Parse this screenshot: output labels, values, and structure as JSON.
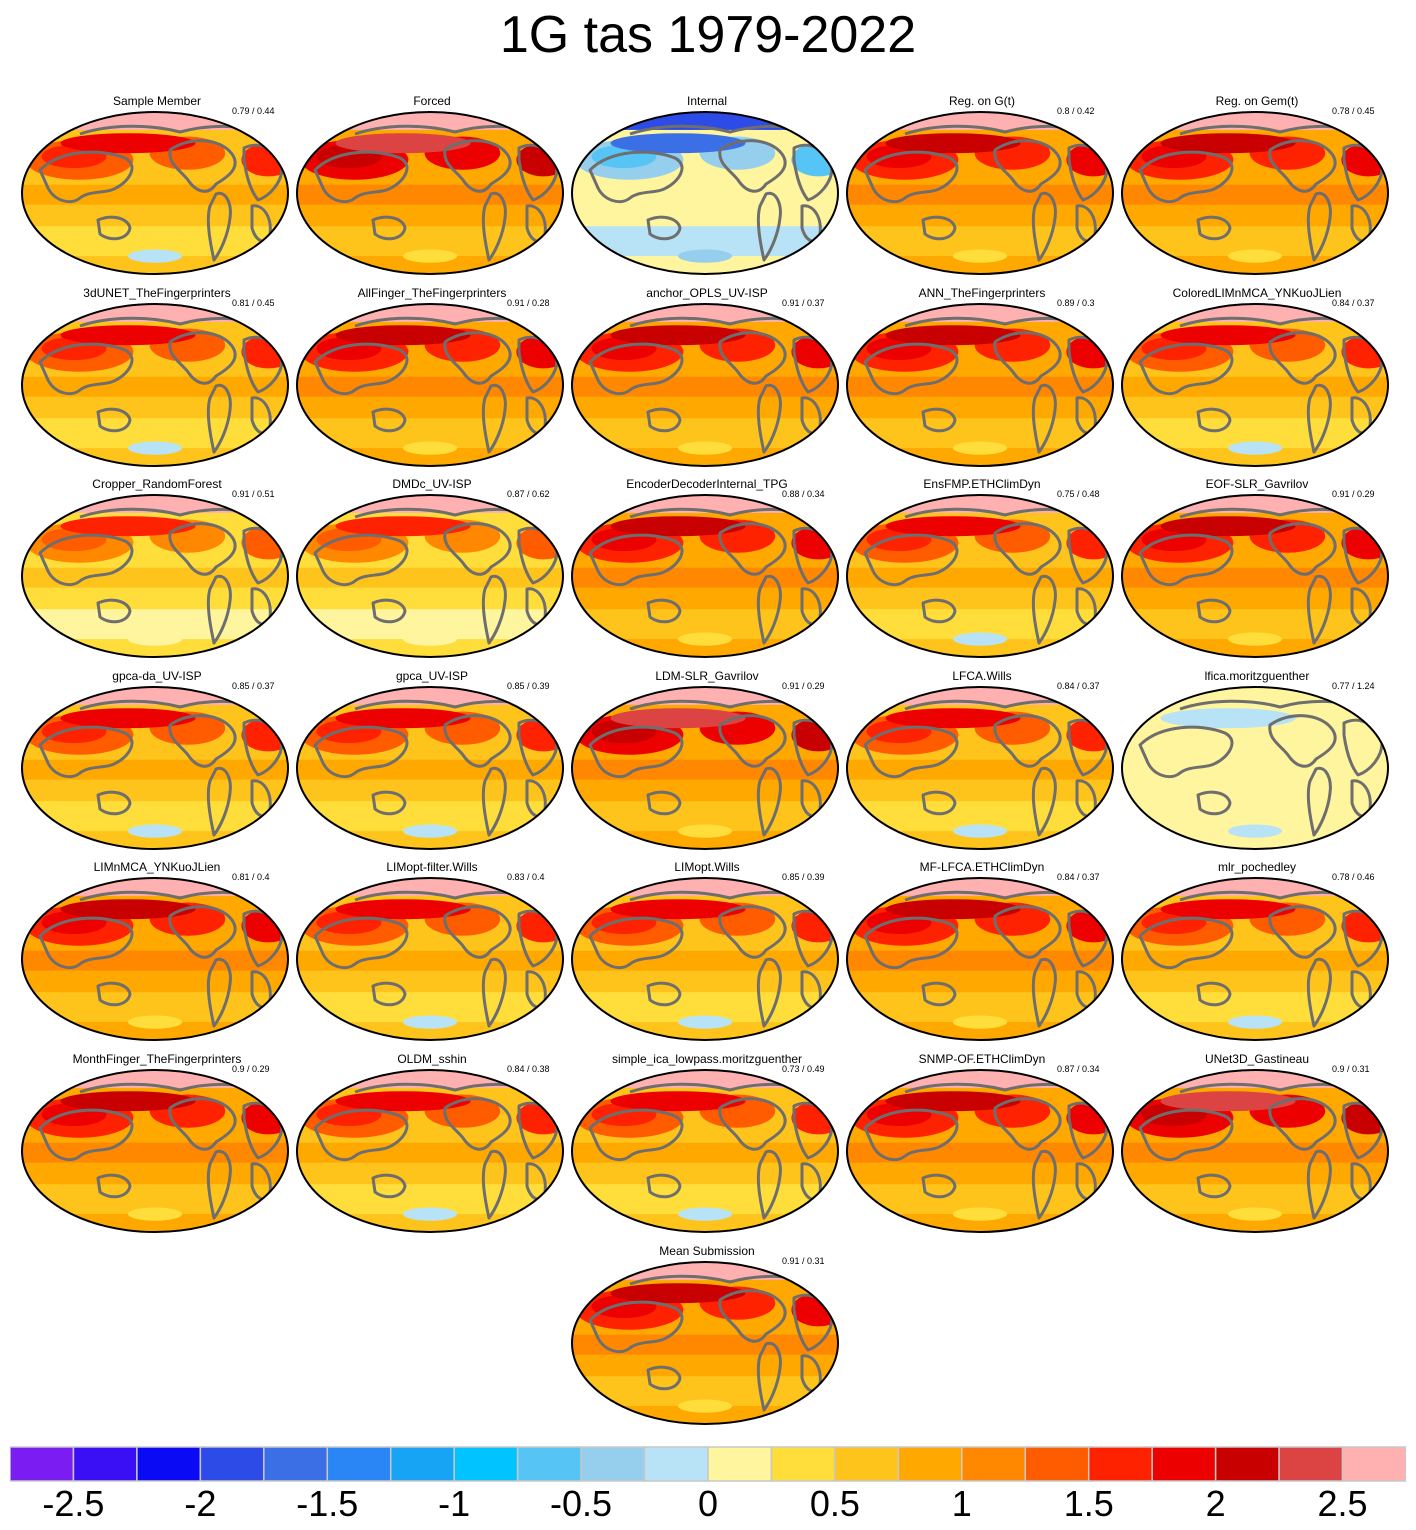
{
  "title": "1G tas 1979-2022",
  "panels": [
    {
      "name": "Sample Member",
      "score": "0.79 / 0.44",
      "pattern": "member"
    },
    {
      "name": "Forced",
      "score": "",
      "pattern": "forced"
    },
    {
      "name": "Internal",
      "score": "",
      "pattern": "internal"
    },
    {
      "name": "Reg. on G(t)",
      "score": "0.8 / 0.42",
      "pattern": "warm"
    },
    {
      "name": "Reg. on Gem(t)",
      "score": "0.78 / 0.45",
      "pattern": "warm"
    },
    {
      "name": "3dUNET_TheFingerprinters",
      "score": "0.81 / 0.45",
      "pattern": "member"
    },
    {
      "name": "AllFinger_TheFingerprinters",
      "score": "0.91 / 0.28",
      "pattern": "warm"
    },
    {
      "name": "anchor_OPLS_UV-ISP",
      "score": "0.91 / 0.37",
      "pattern": "warm"
    },
    {
      "name": "ANN_TheFingerprinters",
      "score": "0.89 / 0.3",
      "pattern": "warm"
    },
    {
      "name": "ColoredLIMnMCA_YNKuoJLien",
      "score": "0.84 / 0.37",
      "pattern": "member"
    },
    {
      "name": "Cropper_RandomForest",
      "score": "0.91 / 0.51",
      "pattern": "mild"
    },
    {
      "name": "DMDc_UV-ISP",
      "score": "0.87 / 0.62",
      "pattern": "mild"
    },
    {
      "name": "EncoderDecoderInternal_TPG",
      "score": "0.88 / 0.34",
      "pattern": "warm"
    },
    {
      "name": "EnsFMP.ETHClimDyn",
      "score": "0.75 / 0.48",
      "pattern": "member"
    },
    {
      "name": "EOF-SLR_Gavrilov",
      "score": "0.91 / 0.29",
      "pattern": "warm"
    },
    {
      "name": "gpca-da_UV-ISP",
      "score": "0.85 / 0.37",
      "pattern": "member"
    },
    {
      "name": "gpca_UV-ISP",
      "score": "0.85 / 0.39",
      "pattern": "member"
    },
    {
      "name": "LDM-SLR_Gavrilov",
      "score": "0.91 / 0.29",
      "pattern": "forced"
    },
    {
      "name": "LFCA.Wills",
      "score": "0.84 / 0.37",
      "pattern": "member"
    },
    {
      "name": "lfica.moritzguenther",
      "score": "0.77 / 1.24",
      "pattern": "flat"
    },
    {
      "name": "LIMnMCA_YNKuoJLien",
      "score": "0.81 / 0.4",
      "pattern": "warm"
    },
    {
      "name": "LIMopt-filter.Wills",
      "score": "0.83 / 0.4",
      "pattern": "member"
    },
    {
      "name": "LIMopt.Wills",
      "score": "0.85 / 0.39",
      "pattern": "member"
    },
    {
      "name": "MF-LFCA.ETHClimDyn",
      "score": "0.84 / 0.37",
      "pattern": "warm"
    },
    {
      "name": "mlr_pochedley",
      "score": "0.78 / 0.46",
      "pattern": "member"
    },
    {
      "name": "MonthFinger_TheFingerprinters",
      "score": "0.9 / 0.29",
      "pattern": "warm"
    },
    {
      "name": "OLDM_sshin",
      "score": "0.84 / 0.38",
      "pattern": "member"
    },
    {
      "name": "simple_ica_lowpass.moritzguenther",
      "score": "0.73 / 0.49",
      "pattern": "member"
    },
    {
      "name": "SNMP-OF.ETHClimDyn",
      "score": "0.87 / 0.34",
      "pattern": "warm"
    },
    {
      "name": "UNet3D_Gastineau",
      "score": "0.9 / 0.31",
      "pattern": "forced"
    },
    {
      "name": "Mean Submission",
      "score": "0.91 / 0.31",
      "pattern": "warm"
    }
  ],
  "colorbar": {
    "colors": [
      "#7b1cf2",
      "#3a0ff5",
      "#0a0af5",
      "#2d4be6",
      "#3b6fe6",
      "#2b86f5",
      "#18a4f5",
      "#00c3ff",
      "#56c5f5",
      "#96cfee",
      "#b8e2f5",
      "#fff59e",
      "#ffde3c",
      "#ffc41c",
      "#ffa800",
      "#ff8800",
      "#ff5c00",
      "#ff2200",
      "#ec0000",
      "#c80000",
      "#dc4444",
      "#ffb0b0"
    ],
    "ticks": [
      "-2.5",
      "-2",
      "-1.5",
      "-1",
      "-0.5",
      "0",
      "0.5",
      "1",
      "1.5",
      "2",
      "2.5"
    ]
  }
}
